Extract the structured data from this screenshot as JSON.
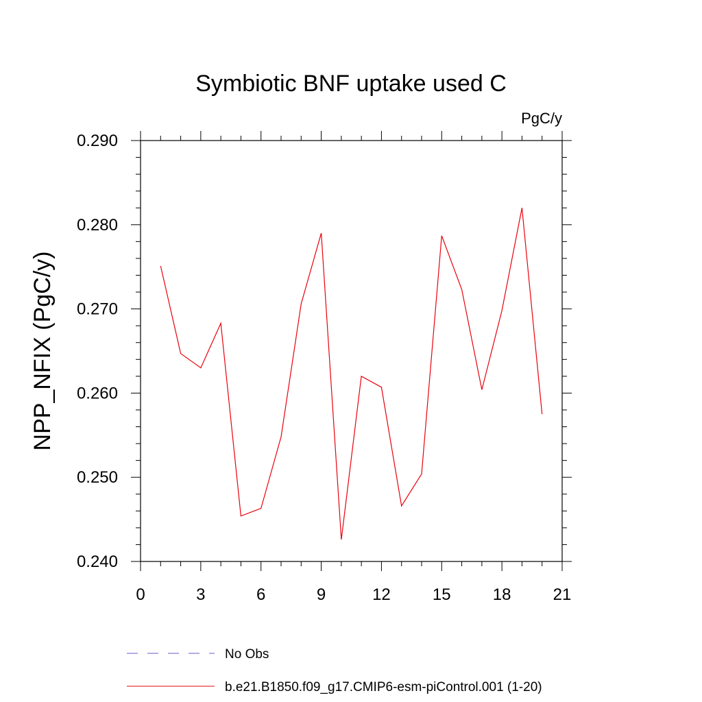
{
  "chart_data": {
    "type": "line",
    "title": "Symbiotic BNF uptake used C",
    "units": "PgC/y",
    "xlabel": "",
    "ylabel": "NPP_NFIX  (PgC/y)",
    "xlim": [
      0,
      21
    ],
    "ylim": [
      0.24,
      0.29
    ],
    "x_ticks": [
      0,
      3,
      6,
      9,
      12,
      15,
      18,
      21
    ],
    "x_tick_labels": [
      "0",
      "3",
      "6",
      "9",
      "12",
      "15",
      "18",
      "21"
    ],
    "y_ticks": [
      0.24,
      0.25,
      0.26,
      0.27,
      0.28,
      0.29
    ],
    "y_tick_labels": [
      "0.240",
      "0.250",
      "0.260",
      "0.270",
      "0.280",
      "0.290"
    ],
    "grid": false,
    "legend_position": "bottom",
    "series": [
      {
        "name": "b.e21.B1850.f09_g17.CMIP6-esm-piControl.001 (1-20)",
        "color": "#e8000b",
        "style": "solid",
        "x": [
          1,
          2,
          3,
          4,
          5,
          6,
          7,
          8,
          9,
          10,
          11,
          12,
          13,
          14,
          15,
          16,
          17,
          18,
          19,
          20
        ],
        "y": [
          0.2751,
          0.2647,
          0.263,
          0.2683,
          0.2454,
          0.2463,
          0.2548,
          0.2706,
          0.279,
          0.2426,
          0.262,
          0.2607,
          0.2466,
          0.2504,
          0.2787,
          0.2723,
          0.2604,
          0.2698,
          0.282,
          0.2575
        ]
      }
    ],
    "legend": [
      {
        "label": "No Obs",
        "color": "#6a5acd",
        "style": "dashed"
      },
      {
        "label": "b.e21.B1850.f09_g17.CMIP6-esm-piControl.001 (1-20)",
        "color": "#e8000b",
        "style": "solid"
      }
    ]
  }
}
